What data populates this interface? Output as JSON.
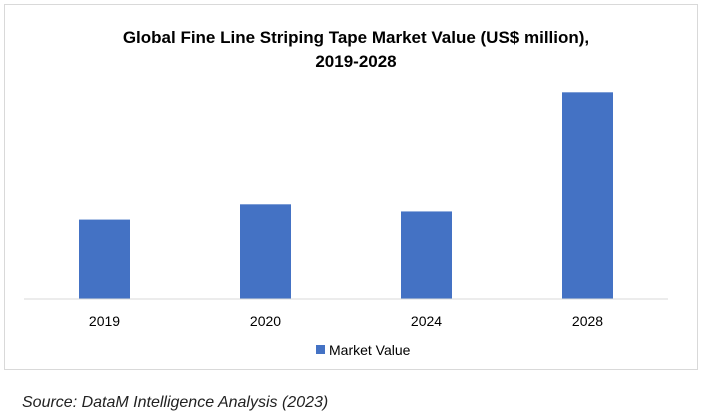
{
  "chart_data": {
    "type": "bar",
    "title": "Global Fine Line Striping Tape Market Value (US$ million),",
    "subtitle": "2019-2028",
    "categories": [
      "2019",
      "2020",
      "2024",
      "2028"
    ],
    "series": [
      {
        "name": "Market Value",
        "values": [
          78,
          93,
          86,
          203
        ]
      }
    ],
    "xlabel": "",
    "ylabel": "",
    "ylim": [
      0,
      220
    ],
    "grid": false,
    "legend": "bottom",
    "colors": {
      "bar": "#4472c4",
      "axis": "#d9d9d9"
    }
  },
  "source": "Source: DataM Intelligence Analysis (2023)"
}
